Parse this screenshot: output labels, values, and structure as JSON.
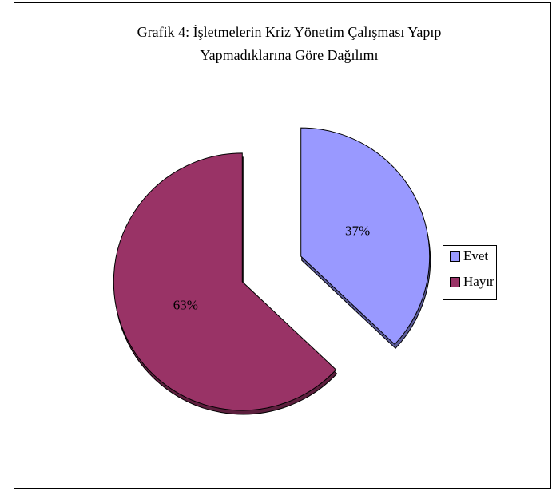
{
  "chart_data": {
    "type": "pie",
    "title": [
      "Grafik 4: İşletmelerin Kriz Yönetim Çalışması Yapıp",
      "Yapmadıklarına Göre Dağılımı"
    ],
    "categories": [
      "Evet",
      "Hayır"
    ],
    "values": [
      37,
      63
    ],
    "value_labels": [
      "37%",
      "63%"
    ],
    "colors": [
      "#9999ff",
      "#993366"
    ],
    "legend": "right"
  }
}
